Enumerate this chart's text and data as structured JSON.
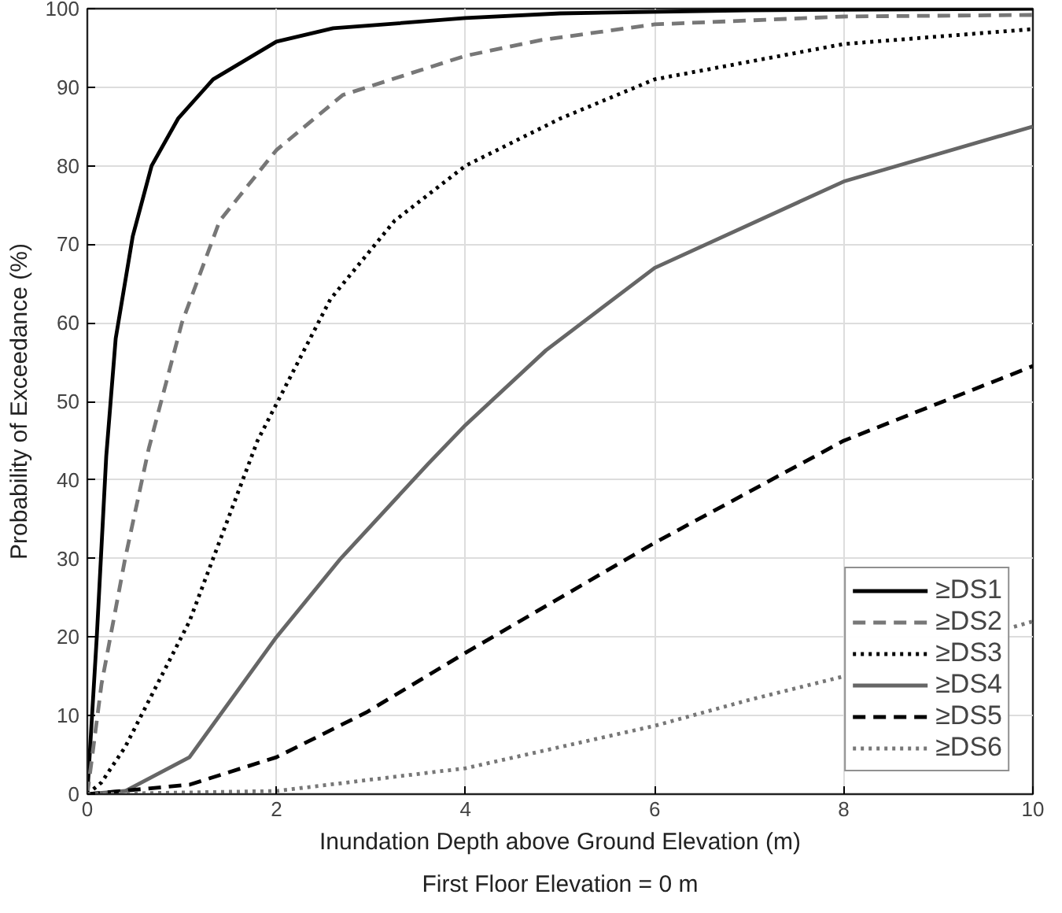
{
  "chart_data": {
    "type": "line",
    "xlabel": "Inundation Depth above Ground Elevation (m)",
    "ylabel": "Probability of Exceedance (%)",
    "annotations": [
      "First Floor Elevation = 0 m"
    ],
    "xlim": [
      0,
      10
    ],
    "ylim": [
      0,
      100
    ],
    "xticks": [
      0,
      2,
      4,
      6,
      8,
      10
    ],
    "yticks": [
      0,
      10,
      20,
      30,
      40,
      50,
      60,
      70,
      80,
      90,
      100
    ],
    "grid": true,
    "legend": "bottom right",
    "marker": "none",
    "series": [
      {
        "name": "≥DS1",
        "color": "#000000",
        "line_style": "solid",
        "x": [
          0,
          0.1,
          0.2,
          0.3,
          0.48,
          0.68,
          0.96,
          1.33,
          2,
          2.6,
          4,
          5,
          7,
          10
        ],
        "values": [
          0,
          20,
          43,
          58,
          71,
          80,
          86,
          91,
          95.8,
          97.5,
          98.8,
          99.4,
          99.8,
          100
        ]
      },
      {
        "name": "≥DS2",
        "color": "#777777",
        "line_style": "dashed",
        "x": [
          0,
          0.15,
          0.4,
          0.65,
          1,
          1.4,
          2,
          2.7,
          4,
          4.8,
          6,
          8,
          10
        ],
        "values": [
          0,
          14,
          30,
          44,
          60,
          73,
          82,
          89,
          94,
          96,
          98,
          99,
          99.2
        ]
      },
      {
        "name": "≥DS3",
        "color": "#000000",
        "line_style": "dotted",
        "x": [
          0,
          0.15,
          0.4,
          1.08,
          1.8,
          2.57,
          3.25,
          4,
          5,
          6,
          8,
          10
        ],
        "values": [
          0,
          1.5,
          6,
          22,
          45,
          63,
          73,
          80,
          86,
          91,
          95.5,
          97.4
        ]
      },
      {
        "name": "≥DS4",
        "color": "#666666",
        "line_style": "solid",
        "x": [
          0,
          0.4,
          1.08,
          2,
          2.68,
          3.6,
          4,
          4.85,
          6,
          8,
          10
        ],
        "values": [
          0,
          0.4,
          4.7,
          20,
          30,
          42,
          47,
          56.5,
          67,
          78,
          85
        ]
      },
      {
        "name": "≥DS5",
        "color": "#000000",
        "line_style": "dashed",
        "x": [
          0,
          1.08,
          2,
          2.95,
          4,
          6,
          8,
          10
        ],
        "values": [
          0,
          1.2,
          4.7,
          10.4,
          18,
          32,
          45,
          54.5
        ]
      },
      {
        "name": "≥DS6",
        "color": "#777777",
        "line_style": "dotted",
        "x": [
          0,
          2,
          4,
          6,
          7,
          8,
          8.5,
          9,
          9.5,
          9.8,
          10
        ],
        "values": [
          0,
          0.4,
          3.3,
          8.7,
          12,
          15,
          null,
          null,
          null,
          21.3,
          22
        ]
      }
    ]
  }
}
